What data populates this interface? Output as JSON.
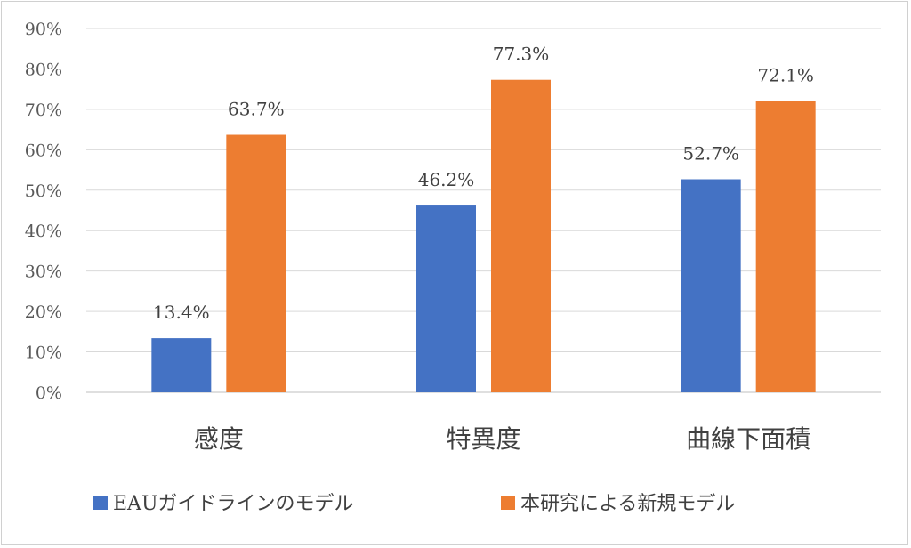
{
  "chart_data": {
    "type": "bar",
    "title": "",
    "xlabel": "",
    "ylabel": "",
    "categories": [
      "感度",
      "特異度",
      "曲線下面積"
    ],
    "series": [
      {
        "name": "EAUガイドラインのモデル",
        "values": [
          13.4,
          46.2,
          52.7
        ],
        "labels": [
          "13.4%",
          "46.2%",
          "52.7%"
        ],
        "color": "#4472C4"
      },
      {
        "name": "本研究による新規モデル",
        "values": [
          63.7,
          77.3,
          72.1
        ],
        "labels": [
          "63.7%",
          "77.3%",
          "72.1%"
        ],
        "color": "#ED7D31"
      }
    ],
    "ylim": [
      0,
      90
    ],
    "yticks": [
      0,
      10,
      20,
      30,
      40,
      50,
      60,
      70,
      80,
      90
    ],
    "ytick_labels": [
      "0%",
      "10%",
      "20%",
      "30%",
      "40%",
      "50%",
      "60%",
      "70%",
      "80%",
      "90%"
    ],
    "grid": true,
    "legend_position": "bottom"
  }
}
